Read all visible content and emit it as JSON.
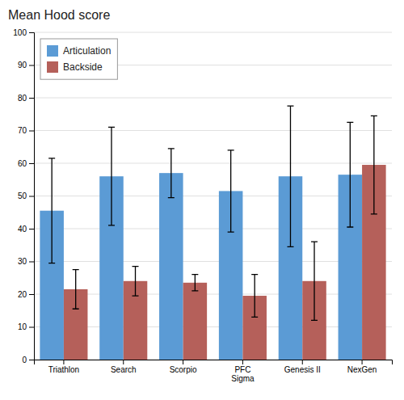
{
  "chart_data": {
    "type": "bar",
    "title": "Mean Hood score",
    "categories": [
      "Triathlon",
      "Search",
      "Scorpio",
      "PFC\nSigma",
      "Genesis II",
      "NexGen"
    ],
    "series": [
      {
        "name": "Articulation",
        "color": "#5b9bd5",
        "values": [
          45.5,
          56.0,
          57.0,
          51.5,
          56.0,
          56.5
        ],
        "errors": [
          16.0,
          15.0,
          7.5,
          12.5,
          21.5,
          16.0
        ]
      },
      {
        "name": "Backside",
        "color": "#b5605a",
        "values": [
          21.5,
          24.0,
          23.5,
          19.5,
          24.0,
          59.5
        ],
        "errors": [
          6.0,
          4.5,
          2.5,
          6.5,
          12.0,
          15.0
        ]
      }
    ],
    "ylim": [
      0,
      100
    ],
    "yticks": [
      0,
      10,
      20,
      30,
      40,
      50,
      60,
      70,
      80,
      90,
      100
    ],
    "grid": true,
    "legend": "upper-left"
  }
}
